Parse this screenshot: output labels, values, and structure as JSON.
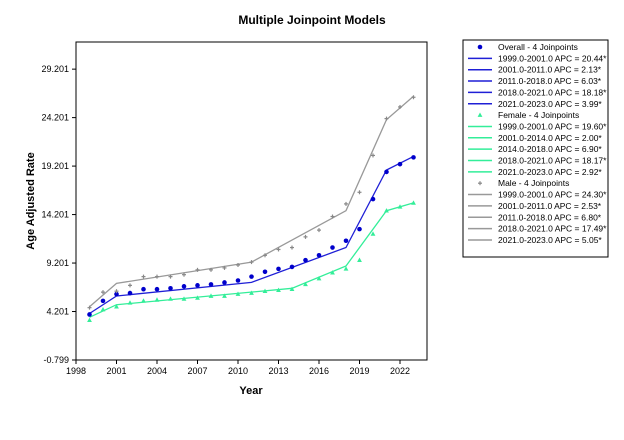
{
  "chart_data": {
    "type": "line",
    "title": "Multiple Joinpoint Models",
    "xlabel": "Year",
    "ylabel": "Age Adjusted Rate",
    "xlim": [
      1998,
      2024
    ],
    "ylim": [
      -0.799,
      32
    ],
    "x_ticks": [
      1998,
      2001,
      2004,
      2007,
      2010,
      2013,
      2016,
      2019,
      2022
    ],
    "x_tick_labels": [
      "1998",
      "2001",
      "2004",
      "2007",
      "2010",
      "2013",
      "2016",
      "2019",
      "2022"
    ],
    "y_ticks": [
      -0.799,
      4.201,
      9.201,
      14.201,
      19.201,
      24.201,
      29.201
    ],
    "y_tick_labels": [
      "-0.799",
      "4.201",
      "9.201",
      "14.201",
      "19.201",
      "24.201",
      "29.201"
    ],
    "grid": false,
    "legend_placement": "right",
    "series": [
      {
        "name": "Overall - 4 Joinpoints",
        "color": "#0000cc",
        "fit_color": "#1f1fd6",
        "marker": "circle",
        "x": [
          1999,
          2000,
          2001,
          2002,
          2003,
          2004,
          2005,
          2006,
          2007,
          2008,
          2009,
          2010,
          2011,
          2012,
          2013,
          2014,
          2015,
          2016,
          2017,
          2018,
          2019,
          2020,
          2021,
          2022,
          2023
        ],
        "observed": [
          3.9,
          5.3,
          6.0,
          6.1,
          6.5,
          6.5,
          6.6,
          6.8,
          6.9,
          7.0,
          7.2,
          7.4,
          7.8,
          8.3,
          8.6,
          8.8,
          9.5,
          10.0,
          10.8,
          11.5,
          12.7,
          15.8,
          18.6,
          19.4,
          20.1
        ],
        "fit_x": [
          1999,
          2001,
          2011,
          2018,
          2021,
          2023
        ],
        "fit_y": [
          4.0,
          5.8,
          7.2,
          10.8,
          18.8,
          20.2
        ],
        "apc": [
          {
            "label": "1999.0-2001.0 APC  = 20.44*"
          },
          {
            "label": "2001.0-2011.0 APC  =  2.13*"
          },
          {
            "label": "2011.0-2018.0 APC  =  6.03*"
          },
          {
            "label": "2018.0-2021.0 APC  = 18.18*"
          },
          {
            "label": "2021.0-2023.0 APC  =  3.99*"
          }
        ]
      },
      {
        "name": "Female - 4 Joinpoints",
        "color": "#33ee99",
        "fit_color": "#33ee99",
        "marker": "triangle",
        "x": [
          1999,
          2000,
          2001,
          2002,
          2003,
          2004,
          2005,
          2006,
          2007,
          2008,
          2009,
          2010,
          2011,
          2012,
          2013,
          2014,
          2015,
          2016,
          2017,
          2018,
          2019,
          2020,
          2021,
          2022,
          2023
        ],
        "observed": [
          3.3,
          4.4,
          4.7,
          5.1,
          5.3,
          5.4,
          5.5,
          5.5,
          5.6,
          5.8,
          5.8,
          6.0,
          6.1,
          6.3,
          6.4,
          6.5,
          7.0,
          7.6,
          8.2,
          8.6,
          9.5,
          12.2,
          14.6,
          15.0,
          15.4
        ],
        "fit_x": [
          1999,
          2001,
          2014,
          2018,
          2021,
          2023
        ],
        "fit_y": [
          3.6,
          4.9,
          6.6,
          8.9,
          14.6,
          15.4
        ],
        "apc": [
          {
            "label": "1999.0-2001.0 APC  = 19.60*"
          },
          {
            "label": "2001.0-2014.0 APC  =  2.00*"
          },
          {
            "label": "2014.0-2018.0 APC  =  6.90*"
          },
          {
            "label": "2018.0-2021.0 APC  = 18.17*"
          },
          {
            "label": "2021.0-2023.0 APC  =  2.92*"
          }
        ]
      },
      {
        "name": "Male - 4 Joinpoints",
        "color": "#888888",
        "fit_color": "#999999",
        "marker": "plus",
        "x": [
          1999,
          2000,
          2001,
          2002,
          2003,
          2004,
          2005,
          2006,
          2007,
          2008,
          2009,
          2010,
          2011,
          2012,
          2013,
          2014,
          2015,
          2016,
          2017,
          2018,
          2019,
          2020,
          2021,
          2022,
          2023
        ],
        "observed": [
          4.6,
          6.2,
          6.3,
          6.9,
          7.8,
          7.8,
          7.8,
          8.0,
          8.5,
          8.5,
          8.7,
          9.0,
          9.3,
          10.0,
          10.6,
          10.8,
          11.9,
          12.6,
          14.0,
          15.3,
          16.5,
          20.3,
          24.1,
          25.3,
          26.3
        ],
        "fit_x": [
          1999,
          2001,
          2011,
          2018,
          2021,
          2023
        ],
        "fit_y": [
          4.7,
          7.1,
          9.3,
          14.6,
          24.0,
          26.4
        ],
        "apc": [
          {
            "label": "1999.0-2001.0 APC  = 24.30*"
          },
          {
            "label": "2001.0-2011.0 APC  =  2.53*"
          },
          {
            "label": "2011.0-2018.0 APC  =  6.80*"
          },
          {
            "label": "2018.0-2021.0 APC  = 17.49*"
          },
          {
            "label": "2021.0-2023.0 APC  =  5.05*"
          }
        ]
      }
    ]
  }
}
